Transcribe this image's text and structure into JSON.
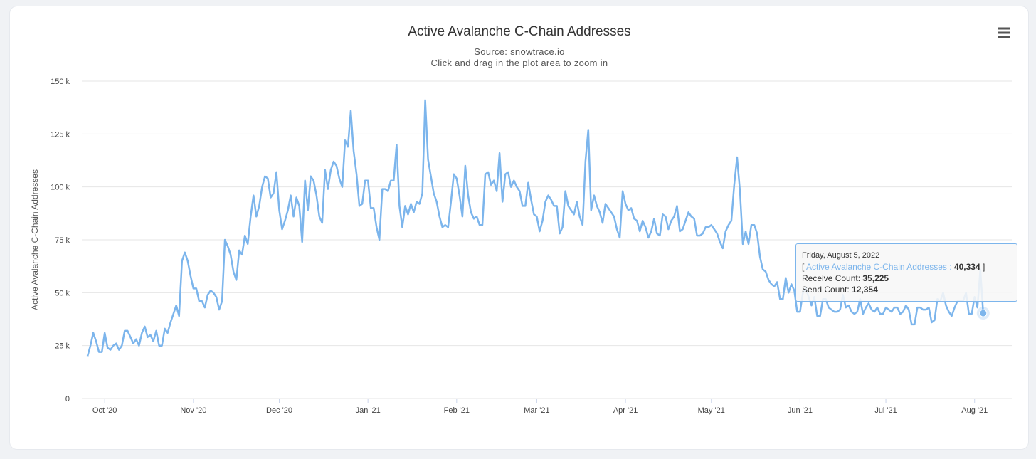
{
  "menu_icon": "hamburger-menu-icon",
  "colors": {
    "series": "#7cb5ec",
    "grid": "#e6e6e6",
    "text": "#333333"
  },
  "chart_data": {
    "type": "line",
    "title": "Active Avalanche C-Chain Addresses",
    "subtitle_source": "Source: snowtrace.io",
    "subtitle_hint": "Click and drag in the plot area to zoom in",
    "ylabel": "Active Avalanche C-Chain Addresses",
    "xlabel": "",
    "ylim": [
      0,
      150000
    ],
    "yticks": [
      {
        "value": 0,
        "label": "0"
      },
      {
        "value": 25000,
        "label": "25 k"
      },
      {
        "value": 50000,
        "label": "50 k"
      },
      {
        "value": 75000,
        "label": "75 k"
      },
      {
        "value": 100000,
        "label": "100 k"
      },
      {
        "value": 125000,
        "label": "125 k"
      },
      {
        "value": 150000,
        "label": "150 k"
      }
    ],
    "xlim": [
      "2020-09-23",
      "2021-08-14"
    ],
    "xticks": [
      {
        "date": "2020-10-01",
        "label": "Oct '20"
      },
      {
        "date": "2020-11-01",
        "label": "Nov '20"
      },
      {
        "date": "2020-12-01",
        "label": "Dec '20"
      },
      {
        "date": "2021-01-01",
        "label": "Jan '21"
      },
      {
        "date": "2021-02-01",
        "label": "Feb '21"
      },
      {
        "date": "2021-03-01",
        "label": "Mar '21"
      },
      {
        "date": "2021-04-01",
        "label": "Apr '21"
      },
      {
        "date": "2021-05-01",
        "label": "May '21"
      },
      {
        "date": "2021-06-01",
        "label": "Jun '21"
      },
      {
        "date": "2021-07-01",
        "label": "Jul '21"
      },
      {
        "date": "2021-08-01",
        "label": "Aug '21"
      }
    ],
    "grid": true,
    "legend": "none",
    "series": [
      {
        "start_date": "2020-09-25",
        "values": [
          20000,
          25000,
          31000,
          27000,
          22000,
          22000,
          31000,
          24000,
          23000,
          25000,
          26000,
          23000,
          25000,
          32000,
          32000,
          29000,
          26000,
          28000,
          25000,
          31000,
          34000,
          29000,
          30000,
          27000,
          32000,
          25000,
          25000,
          33000,
          31000,
          36000,
          40000,
          44000,
          39000,
          65000,
          69000,
          65000,
          58000,
          52000,
          52000,
          46000,
          46000,
          43000,
          49000,
          51000,
          50000,
          48000,
          42000,
          46000,
          75000,
          72000,
          68000,
          60000,
          56000,
          70000,
          68000,
          77000,
          73000,
          86000,
          96000,
          86000,
          91000,
          100000,
          105000,
          104000,
          95000,
          97000,
          107000,
          89000,
          80000,
          84000,
          89000,
          96000,
          86000,
          95000,
          91000,
          74000,
          103000,
          89000,
          105000,
          103000,
          96000,
          86000,
          83000,
          108000,
          99000,
          108000,
          112000,
          110000,
          104000,
          100000,
          122000,
          119000,
          136000,
          117000,
          106000,
          91000,
          92000,
          103000,
          103000,
          90000,
          90000,
          81000,
          75000,
          99000,
          99000,
          98000,
          103000,
          103000,
          120000,
          91000,
          81000,
          91000,
          87000,
          92000,
          88000,
          93000,
          92000,
          97000,
          141000,
          113000,
          105000,
          97000,
          93000,
          86000,
          81000,
          82000,
          81000,
          93000,
          106000,
          104000,
          96000,
          86000,
          110000,
          96000,
          88000,
          85000,
          86000,
          82000,
          82000,
          106000,
          107000,
          101000,
          103000,
          98000,
          116000,
          93000,
          106000,
          107000,
          100000,
          103000,
          100000,
          98000,
          91000,
          91000,
          102000,
          94000,
          87000,
          86000,
          79000,
          84000,
          93000,
          96000,
          94000,
          91000,
          91000,
          78000,
          81000,
          98000,
          91000,
          89000,
          87000,
          93000,
          86000,
          82000,
          112000,
          127000,
          89000,
          96000,
          91000,
          88000,
          83000,
          92000,
          90000,
          88000,
          86000,
          80000,
          76000,
          98000,
          92000,
          89000,
          90000,
          85000,
          84000,
          79000,
          84000,
          81000,
          76000,
          79000,
          85000,
          78000,
          77000,
          87000,
          86000,
          80000,
          84000,
          86000,
          91000,
          79000,
          80000,
          84000,
          88000,
          86000,
          85000,
          77000,
          77000,
          78000,
          81000,
          81000,
          82000,
          80000,
          78000,
          74000,
          71000,
          79000,
          82000,
          84000,
          101000,
          114000,
          98000,
          73000,
          79000,
          73000,
          82000,
          82000,
          78000,
          67000,
          61000,
          60000,
          56000,
          54000,
          53000,
          55000,
          47000,
          47000,
          57000,
          50000,
          54000,
          51000,
          41000,
          41000,
          50000,
          52000,
          48000,
          44000,
          48000,
          39000,
          39000,
          47000,
          47000,
          43000,
          42000,
          41000,
          41000,
          42000,
          49000,
          43000,
          44000,
          41000,
          40000,
          41000,
          47000,
          40000,
          43000,
          45000,
          42000,
          41000,
          43000,
          40000,
          40000,
          43000,
          42000,
          41000,
          43000,
          43000,
          40000,
          41000,
          44000,
          42000,
          35000,
          35000,
          43000,
          43000,
          42000,
          42000,
          43000,
          36000,
          37000,
          47000,
          46000,
          50000,
          44000,
          41000,
          39000,
          43000,
          46000,
          46000,
          46000,
          50000,
          40000,
          40000,
          48000,
          43000,
          61000,
          40334
        ]
      }
    ],
    "highlighted_point": {
      "date": "2022-08-05",
      "value": 40334
    }
  },
  "tooltip": {
    "date": "Friday, August 5, 2022",
    "bracket_open": "[",
    "series_name": "Active Avalanche C-Chain Addresses",
    "colon": ":",
    "value": "40,334",
    "bracket_close": "]",
    "receive_label": "Receive Count:",
    "receive_value": "35,225",
    "send_label": "Send Count:",
    "send_value": "12,354"
  }
}
